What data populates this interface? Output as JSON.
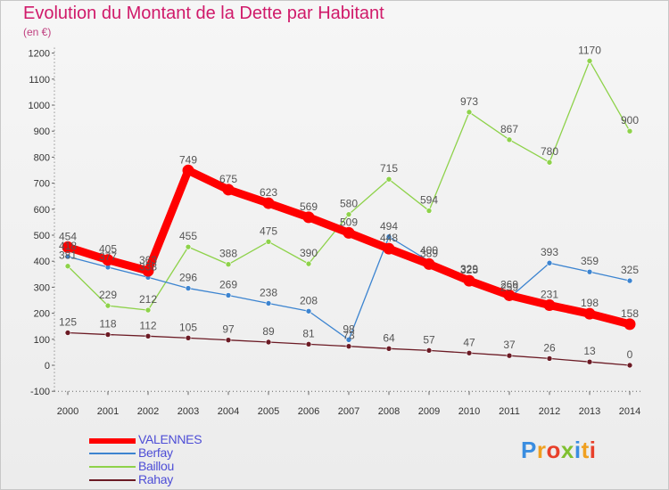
{
  "title": "Evolution du Montant de la Dette par Habitant",
  "subtitle": "(en €)",
  "logo_text": "Proxiti",
  "chart_data": {
    "type": "line",
    "title": "Evolution du Montant de la Dette par Habitant",
    "ylabel": "(en €)",
    "x": [
      "2000",
      "2001",
      "2002",
      "2003",
      "2004",
      "2005",
      "2006",
      "2007",
      "2008",
      "2009",
      "2010",
      "2011",
      "2012",
      "2013",
      "2014"
    ],
    "ylim": [
      -100,
      1200
    ],
    "yticks": [
      -100,
      0,
      100,
      200,
      300,
      400,
      500,
      600,
      700,
      800,
      900,
      1000,
      1100,
      1200
    ],
    "grid": false,
    "legend_position": "bottom-left",
    "series": [
      {
        "name": "Rahay",
        "color": "#6b1a24",
        "values": [
          125,
          118,
          112,
          105,
          97,
          89,
          81,
          73,
          64,
          57,
          47,
          37,
          26,
          13,
          0
        ]
      },
      {
        "name": "Baillou",
        "color": "#8ed24a",
        "values": [
          381,
          229,
          212,
          455,
          388,
          475,
          390,
          580,
          715,
          594,
          973,
          867,
          780,
          1170,
          900
        ]
      },
      {
        "name": "Berfay",
        "color": "#3c84d0",
        "values": [
          418,
          377,
          338,
          296,
          269,
          238,
          208,
          98,
          494,
          400,
          329,
          259,
          393,
          359,
          325
        ]
      },
      {
        "name": "VALENNES",
        "color": "#ff0000",
        "values": [
          454,
          405,
          363,
          749,
          675,
          623,
          569,
          509,
          448,
          389,
          325,
          269,
          231,
          198,
          158
        ]
      }
    ],
    "legend": [
      "VALENNES",
      "Berfay",
      "Baillou",
      "Rahay"
    ]
  }
}
